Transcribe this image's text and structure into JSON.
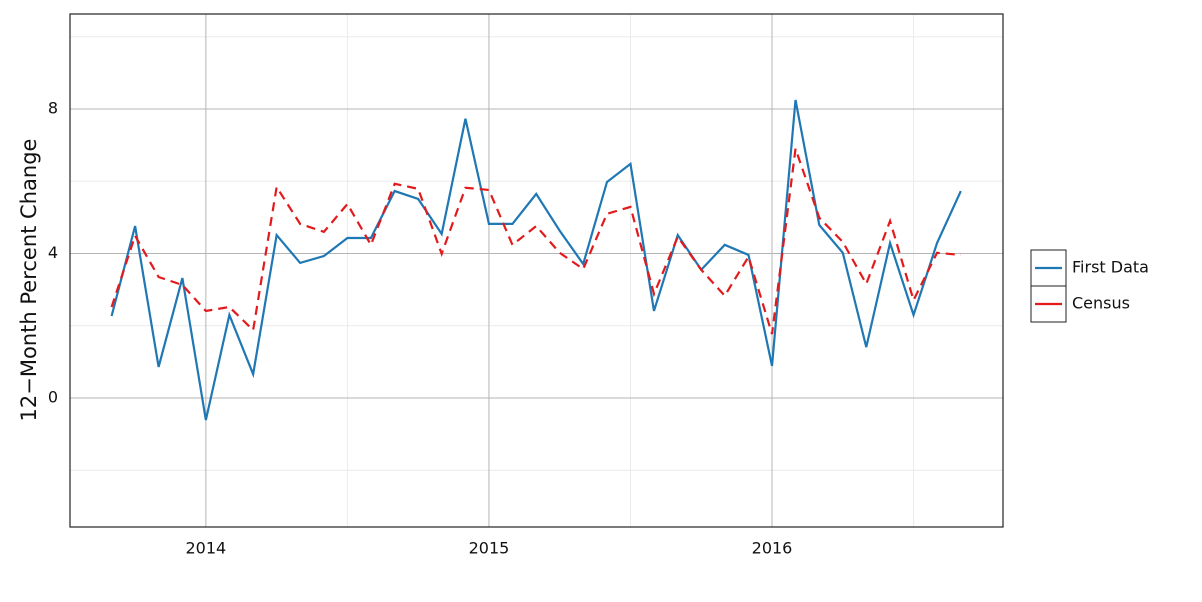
{
  "chart_data": {
    "type": "line",
    "y_label": "12−Month Percent Change",
    "x": [
      2013.667,
      2013.75,
      2013.833,
      2013.917,
      2014,
      2014.083,
      2014.167,
      2014.25,
      2014.333,
      2014.417,
      2014.5,
      2014.583,
      2014.667,
      2014.75,
      2014.833,
      2014.917,
      2015,
      2015.083,
      2015.167,
      2015.25,
      2015.333,
      2015.417,
      2015.5,
      2015.583,
      2015.667,
      2015.75,
      2015.833,
      2015.917,
      2016,
      2016.083,
      2016.167,
      2016.25,
      2016.333,
      2016.417,
      2016.5,
      2016.583,
      2016.667
    ],
    "series": [
      {
        "name": "First Data",
        "color": "#1f78b4",
        "dash": false,
        "values": [
          2.27,
          4.76,
          0.86,
          3.32,
          -0.61,
          2.3,
          0.66,
          4.51,
          3.74,
          3.93,
          4.43,
          4.43,
          5.73,
          5.51,
          4.54,
          7.73,
          4.82,
          4.82,
          5.65,
          4.63,
          3.71,
          5.98,
          6.48,
          2.41,
          4.51,
          3.55,
          4.24,
          3.96,
          0.89,
          8.25,
          4.79,
          4.02,
          1.41,
          4.29,
          2.3,
          4.29,
          5.73
        ]
      },
      {
        "name": "Census",
        "color": "#e31a1c",
        "dash": true,
        "values": [
          2.52,
          4.49,
          3.35,
          3.13,
          2.41,
          2.52,
          1.88,
          5.84,
          4.82,
          4.6,
          5.37,
          4.24,
          5.93,
          5.79,
          3.99,
          5.82,
          5.76,
          4.24,
          4.76,
          4.02,
          3.57,
          5.1,
          5.29,
          2.88,
          4.46,
          3.55,
          2.83,
          3.91,
          1.77,
          6.9,
          4.99,
          4.32,
          3.16,
          4.9,
          2.71,
          4.02,
          3.96
        ]
      }
    ],
    "xlim": [
      2013.52,
      2016.816
    ],
    "xticks": [
      2014,
      2015,
      2016
    ],
    "ylim": [
      -3.57,
      10.63
    ],
    "yticks": [
      0,
      4,
      8
    ],
    "grid": true,
    "legend": "right"
  }
}
